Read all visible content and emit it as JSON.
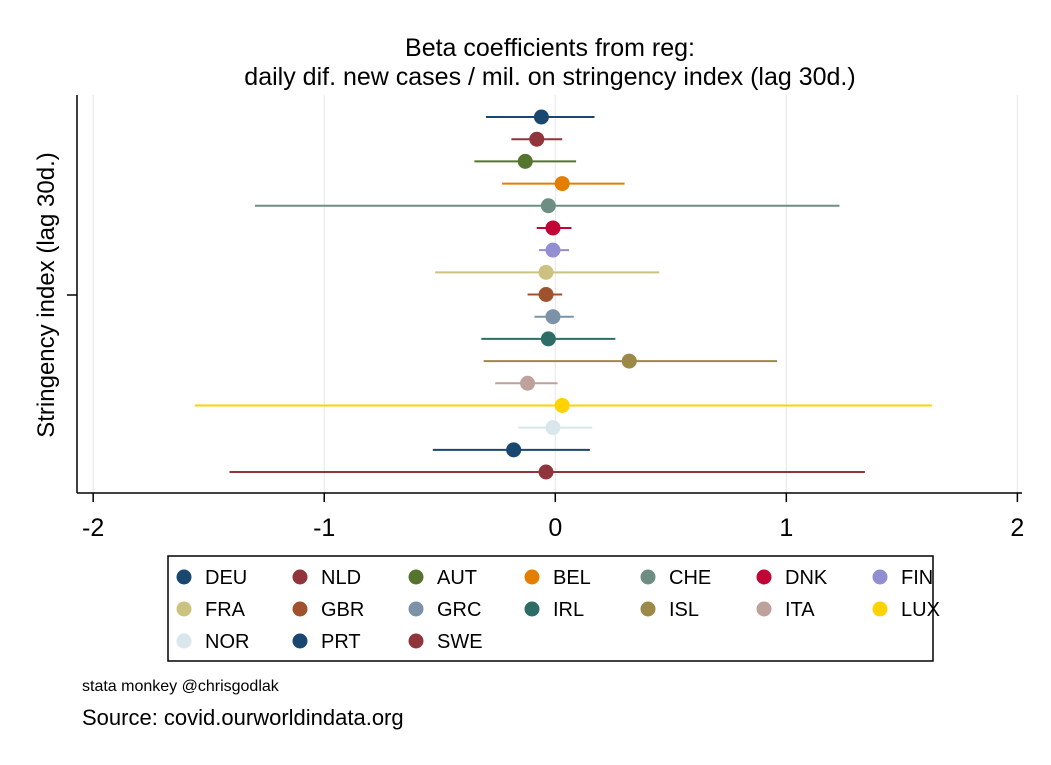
{
  "chart_data": {
    "type": "scatter",
    "subtype": "coefficient plot with confidence intervals",
    "title_lines": [
      "Beta coefficients from reg:",
      "daily dif. new cases / mil. on stringency index (lag 30d.)"
    ],
    "ylabel": "Stringency index (lag 30d.)",
    "xlabel": "",
    "xlim": [
      -2.07,
      2.02
    ],
    "x_ticks": [
      -2,
      -1,
      0,
      1,
      2
    ],
    "x_tick_labels": [
      "-2",
      "-1",
      "0",
      "1",
      "2"
    ],
    "grid": "vertical",
    "legend_placement": "bottom",
    "series": [
      {
        "name": "DEU",
        "color": "#1a476f",
        "estimate": -0.06,
        "ci": [
          -0.3,
          0.17
        ]
      },
      {
        "name": "NLD",
        "color": "#90353b",
        "estimate": -0.08,
        "ci": [
          -0.19,
          0.03
        ]
      },
      {
        "name": "AUT",
        "color": "#55752f",
        "estimate": -0.13,
        "ci": [
          -0.35,
          0.09
        ]
      },
      {
        "name": "BEL",
        "color": "#e37e00",
        "estimate": 0.03,
        "ci": [
          -0.23,
          0.3
        ]
      },
      {
        "name": "CHE",
        "color": "#6e8e84",
        "estimate": -0.03,
        "ci": [
          -1.3,
          1.23
        ]
      },
      {
        "name": "DNK",
        "color": "#c10534",
        "estimate": -0.01,
        "ci": [
          -0.08,
          0.07
        ]
      },
      {
        "name": "FIN",
        "color": "#938dd2",
        "estimate": -0.01,
        "ci": [
          -0.07,
          0.06
        ]
      },
      {
        "name": "FRA",
        "color": "#cac27e",
        "estimate": -0.04,
        "ci": [
          -0.52,
          0.45
        ]
      },
      {
        "name": "GBR",
        "color": "#a0522d",
        "estimate": -0.04,
        "ci": [
          -0.12,
          0.03
        ]
      },
      {
        "name": "GRC",
        "color": "#7b92a8",
        "estimate": -0.01,
        "ci": [
          -0.09,
          0.08
        ]
      },
      {
        "name": "IRL",
        "color": "#2d6d66",
        "estimate": -0.03,
        "ci": [
          -0.32,
          0.26
        ]
      },
      {
        "name": "ISL",
        "color": "#9c8847",
        "estimate": 0.32,
        "ci": [
          -0.31,
          0.96
        ]
      },
      {
        "name": "ITA",
        "color": "#bfa19c",
        "estimate": -0.12,
        "ci": [
          -0.26,
          0.01
        ]
      },
      {
        "name": "LUX",
        "color": "#ffd200",
        "estimate": 0.03,
        "ci": [
          -1.56,
          1.63
        ]
      },
      {
        "name": "NOR",
        "color": "#d9e6eb",
        "estimate": -0.01,
        "ci": [
          -0.16,
          0.16
        ]
      },
      {
        "name": "PRT",
        "color": "#1a476f",
        "estimate": -0.18,
        "ci": [
          -0.53,
          0.15
        ]
      },
      {
        "name": "SWE",
        "color": "#90353b",
        "estimate": -0.04,
        "ci": [
          -1.41,
          1.34
        ]
      }
    ]
  },
  "notes": {
    "credit": "stata monkey @chrisgodlak",
    "source": "Source: covid.ourworldindata.org"
  }
}
